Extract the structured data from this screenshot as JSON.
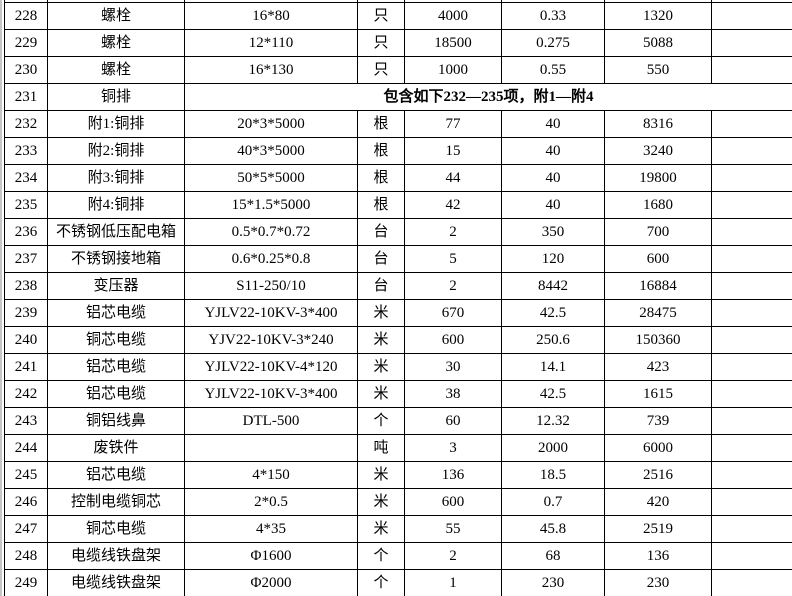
{
  "colors": {
    "background": "#ffffff",
    "grid_border": "#000000",
    "text": "#000000",
    "edge_strip": "#c6c6c6"
  },
  "table": {
    "rows": [
      {
        "no": "228",
        "name": "螺栓",
        "spec": "16*80",
        "unit": "只",
        "qty": "4000",
        "price": "0.33",
        "amount": "1320"
      },
      {
        "no": "229",
        "name": "螺栓",
        "spec": "12*110",
        "unit": "只",
        "qty": "18500",
        "price": "0.275",
        "amount": "5088"
      },
      {
        "no": "230",
        "name": "螺栓",
        "spec": "16*130",
        "unit": "只",
        "qty": "1000",
        "price": "0.55",
        "amount": "550"
      },
      {
        "no": "231",
        "name": "铜排",
        "note": "包含如下232—235项，附1—附4"
      },
      {
        "no": "232",
        "name": "附1:铜排",
        "spec": "20*3*5000",
        "unit": "根",
        "qty": "77",
        "price": "40",
        "amount": "8316"
      },
      {
        "no": "233",
        "name": "附2:铜排",
        "spec": "40*3*5000",
        "unit": "根",
        "qty": "15",
        "price": "40",
        "amount": "3240"
      },
      {
        "no": "234",
        "name": "附3:铜排",
        "spec": "50*5*5000",
        "unit": "根",
        "qty": "44",
        "price": "40",
        "amount": "19800"
      },
      {
        "no": "235",
        "name": "附4:铜排",
        "spec": "15*1.5*5000",
        "unit": "根",
        "qty": "42",
        "price": "40",
        "amount": "1680"
      },
      {
        "no": "236",
        "name": "不锈钢低压配电箱",
        "spec": "0.5*0.7*0.72",
        "unit": "台",
        "qty": "2",
        "price": "350",
        "amount": "700"
      },
      {
        "no": "237",
        "name": "不锈钢接地箱",
        "spec": "0.6*0.25*0.8",
        "unit": "台",
        "qty": "5",
        "price": "120",
        "amount": "600"
      },
      {
        "no": "238",
        "name": "变压器",
        "spec": "S11-250/10",
        "unit": "台",
        "qty": "2",
        "price": "8442",
        "amount": "16884"
      },
      {
        "no": "239",
        "name": "铝芯电缆",
        "spec": "YJLV22-10KV-3*400",
        "unit": "米",
        "qty": "670",
        "price": "42.5",
        "amount": "28475"
      },
      {
        "no": "240",
        "name": "铜芯电缆",
        "spec": "YJV22-10KV-3*240",
        "unit": "米",
        "qty": "600",
        "price": "250.6",
        "amount": "150360"
      },
      {
        "no": "241",
        "name": "铝芯电缆",
        "spec": "YJLV22-10KV-4*120",
        "unit": "米",
        "qty": "30",
        "price": "14.1",
        "amount": "423"
      },
      {
        "no": "242",
        "name": "铝芯电缆",
        "spec": "YJLV22-10KV-3*400",
        "unit": "米",
        "qty": "38",
        "price": "42.5",
        "amount": "1615"
      },
      {
        "no": "243",
        "name": "铜铝线鼻",
        "spec": "DTL-500",
        "unit": "个",
        "qty": "60",
        "price": "12.32",
        "amount": "739"
      },
      {
        "no": "244",
        "name": "废铁件",
        "spec": "",
        "unit": "吨",
        "qty": "3",
        "price": "2000",
        "amount": "6000"
      },
      {
        "no": "245",
        "name": "铝芯电缆",
        "spec": "4*150",
        "unit": "米",
        "qty": "136",
        "price": "18.5",
        "amount": "2516"
      },
      {
        "no": "246",
        "name": "控制电缆铜芯",
        "spec": "2*0.5",
        "unit": "米",
        "qty": "600",
        "price": "0.7",
        "amount": "420"
      },
      {
        "no": "247",
        "name": "铜芯电缆",
        "spec": "4*35",
        "unit": "米",
        "qty": "55",
        "price": "45.8",
        "amount": "2519"
      },
      {
        "no": "248",
        "name": "电缆线铁盘架",
        "spec": "Φ1600",
        "unit": "个",
        "qty": "2",
        "price": "68",
        "amount": "136"
      },
      {
        "no": "249",
        "name": "电缆线铁盘架",
        "spec": "Φ2000",
        "unit": "个",
        "qty": "1",
        "price": "230",
        "amount": "230"
      }
    ]
  }
}
